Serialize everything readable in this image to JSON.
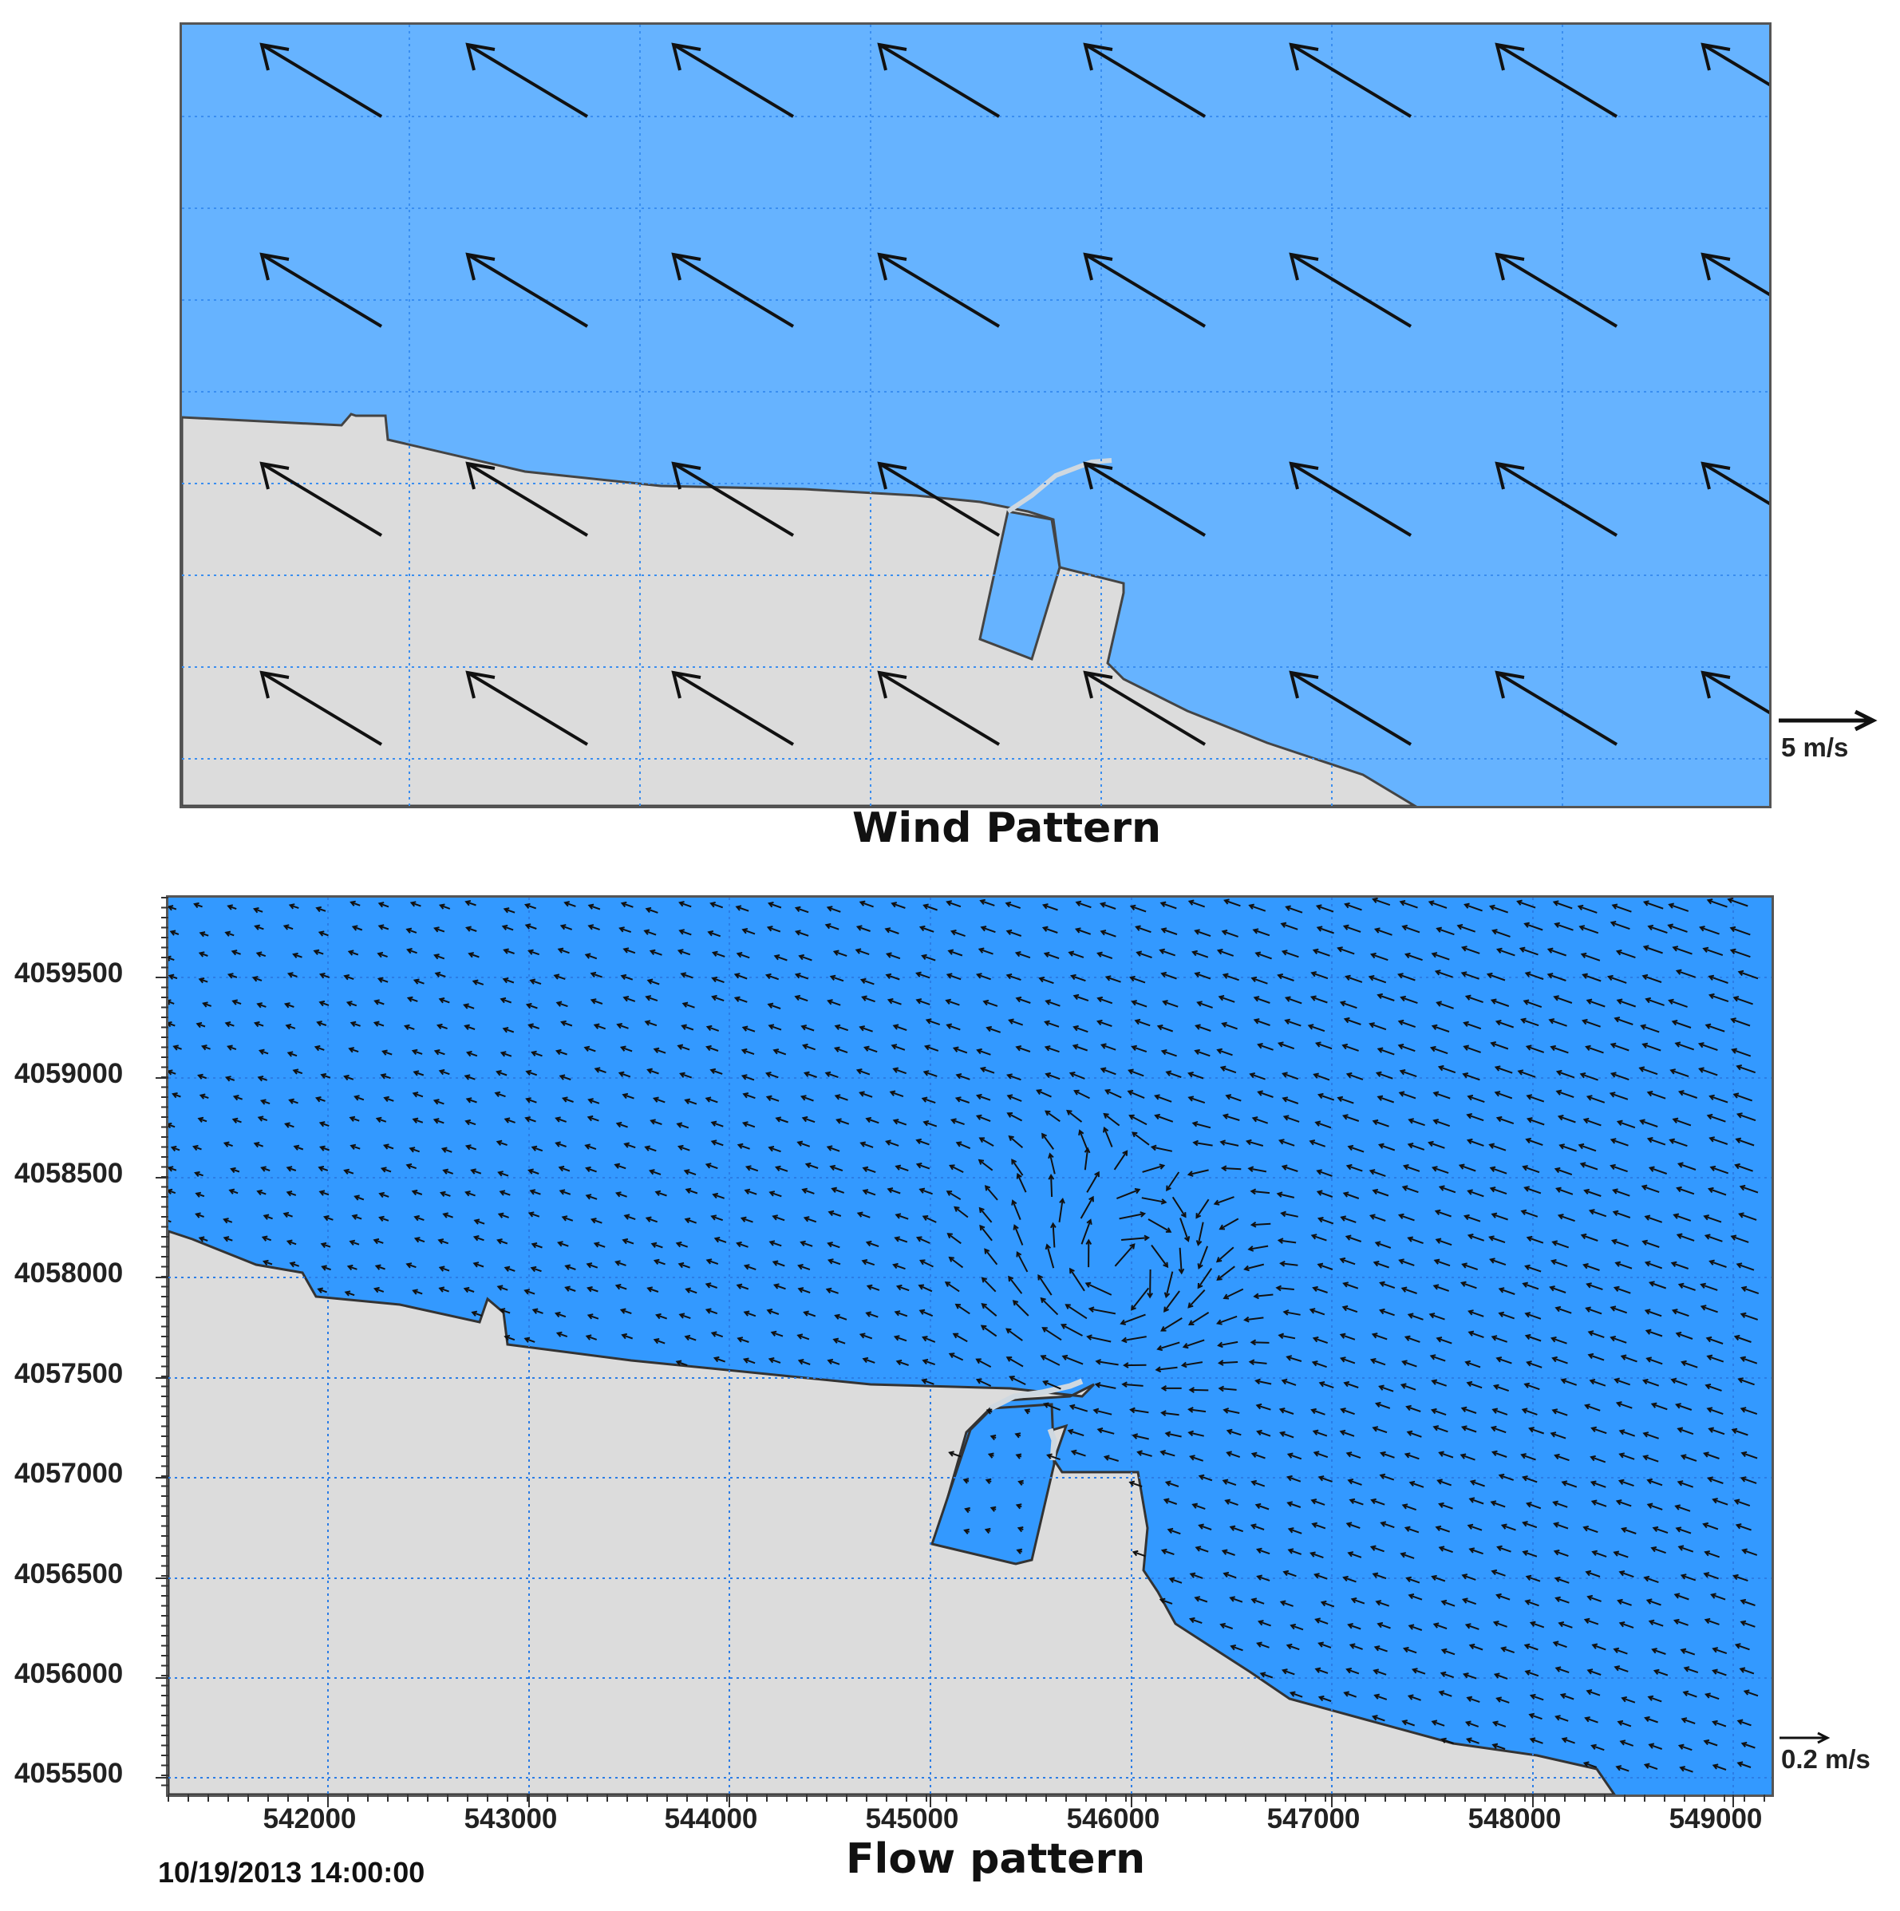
{
  "wind_panel": {
    "title": "Wind Pattern",
    "scale_label": "5 m/s",
    "colors": {
      "water": "#66b3ff",
      "land": "#dcdcdc",
      "grid": "#3a8ef0",
      "arrow": "#111111"
    },
    "wind_direction": "toward north-west"
  },
  "flow_panel": {
    "title": "Flow pattern",
    "scale_label": "0.2 m/s",
    "timestamp": "10/19/2013 14:00:00",
    "colors": {
      "water": "#3399ff",
      "land": "#dcdcdc",
      "grid": "#2b7de6",
      "arrow": "#111111"
    },
    "x_ticks": [
      "542000",
      "543000",
      "544000",
      "545000",
      "546000",
      "547000",
      "548000",
      "549000"
    ],
    "y_ticks": [
      "4059500",
      "4059000",
      "4058500",
      "4058000",
      "4057500",
      "4057000",
      "4056500",
      "4056000",
      "4055500"
    ],
    "eddy_center": {
      "x": 546000,
      "y": 4057700
    }
  }
}
